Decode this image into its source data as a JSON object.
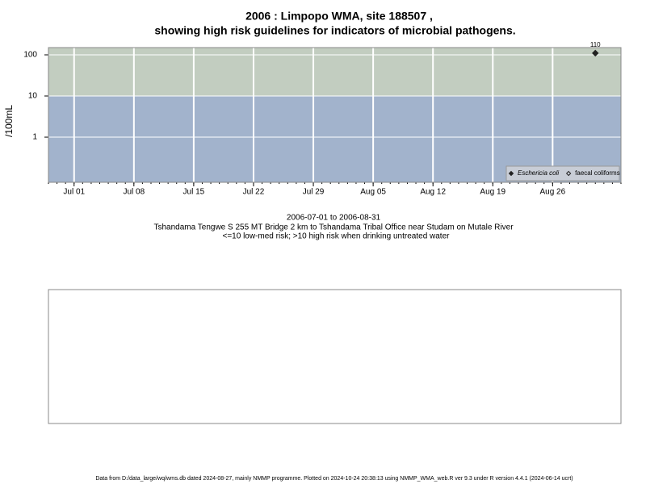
{
  "chart_data": {
    "type": "scatter",
    "title": "2006 : Limpopo WMA, site 188507 ,",
    "subtitle": "showing high risk guidelines for indicators of microbial pathogens.",
    "ylabel": "/100mL",
    "notes": [
      "2006-07-01 to 2006-08-31",
      "Tshandama Tengwe S 255 MT Bridge 2 km to Tshandama Tribal Office near Studam on Mutale River",
      "<=10 low-med risk; >10 high risk when drinking untreated water"
    ],
    "footer": "Data from D:/data_large/wq/wms.db dated 2024-08-27, mainly NMMP programme. Plotted on 2024-10-24 20:38:13 using NMMP_WMA_web.R ver 9.3 under R version 4.4.1 (2024-06-14 ucrt)",
    "log_y": true,
    "grid": true,
    "legend": "bottom-right",
    "threshold": 10,
    "high_color": "#c2cdc0",
    "low_color": "#a2b3cc",
    "xlim": [
      "2006-06-28",
      "2006-09-03"
    ],
    "xticks": [
      {
        "value": "2006-07-01",
        "label": "Jul 01"
      },
      {
        "value": "2006-07-08",
        "label": "Jul 08"
      },
      {
        "value": "2006-07-15",
        "label": "Jul 15"
      },
      {
        "value": "2006-07-22",
        "label": "Jul 22"
      },
      {
        "value": "2006-07-29",
        "label": "Jul 29"
      },
      {
        "value": "2006-08-05",
        "label": "Aug 05"
      },
      {
        "value": "2006-08-12",
        "label": "Aug 12"
      },
      {
        "value": "2006-08-19",
        "label": "Aug 19"
      },
      {
        "value": "2006-08-26",
        "label": "Aug 26"
      }
    ],
    "ylim": [
      0.08,
      150
    ],
    "yticks": [
      1,
      10,
      100
    ],
    "series": [
      {
        "name": "Eschericia coli",
        "color": "#222222",
        "x": [
          "2006-08-31"
        ],
        "values": [
          110
        ],
        "value_labels": [
          "110"
        ]
      },
      {
        "name": "faecal coliforms",
        "color": "#222222",
        "x": [
          "2006-08-31"
        ],
        "values": [
          null
        ]
      }
    ]
  }
}
